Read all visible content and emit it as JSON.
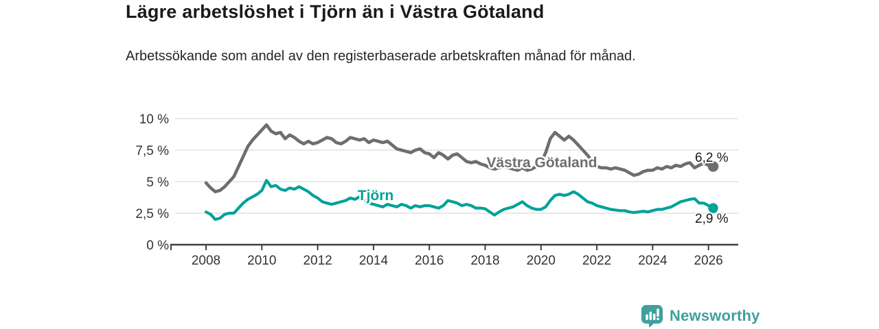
{
  "header": {
    "title": "Lägre arbetslöshet i Tjörn än i Västra Götaland",
    "subtitle": "Arbetssökande som andel av den registerbaserade arbetskraften månad för månad."
  },
  "chart_data": {
    "type": "line",
    "title": "Lägre arbetslöshet i Tjörn än i Västra Götaland",
    "xlabel": "",
    "ylabel": "",
    "x_unit": "year",
    "y_unit": "%",
    "grid": "horizontal",
    "legend": "inline-labels",
    "xlim": [
      2006.7,
      2027.1
    ],
    "ylim": [
      0,
      10.5
    ],
    "x_axis": {
      "tick_values": [
        2008,
        2010,
        2012,
        2014,
        2016,
        2018,
        2020,
        2022,
        2024,
        2026
      ],
      "tick_labels": [
        "2008",
        "2010",
        "2012",
        "2014",
        "2016",
        "2018",
        "2020",
        "2022",
        "2024",
        "2026"
      ]
    },
    "y_axis": {
      "tick_values": [
        0,
        2.5,
        5,
        7.5,
        10
      ],
      "tick_labels": [
        "0 %",
        "2,5 %",
        "5 %",
        "7,5 %",
        "10 %"
      ]
    },
    "x_start": 2008.0,
    "x_step_months": 2,
    "series": [
      {
        "id": "vastra-gotaland",
        "name": "Västra Götaland",
        "color": "#6d6d72",
        "end_value": 6.2,
        "end_label": "6,2 %",
        "values": [
          4.9,
          4.5,
          4.2,
          4.3,
          4.6,
          5.0,
          5.4,
          6.2,
          7.0,
          7.8,
          8.3,
          8.7,
          9.1,
          9.5,
          9.0,
          8.8,
          8.9,
          8.4,
          8.7,
          8.5,
          8.2,
          8.0,
          8.2,
          8.0,
          8.1,
          8.3,
          8.5,
          8.4,
          8.1,
          8.0,
          8.2,
          8.5,
          8.4,
          8.3,
          8.4,
          8.1,
          8.3,
          8.2,
          8.1,
          8.2,
          7.9,
          7.6,
          7.5,
          7.4,
          7.3,
          7.5,
          7.6,
          7.3,
          7.2,
          6.9,
          7.3,
          7.1,
          6.8,
          7.1,
          7.2,
          6.9,
          6.6,
          6.5,
          6.6,
          6.4,
          6.3,
          6.1,
          6.0,
          6.1,
          6.2,
          6.1,
          6.0,
          5.9,
          6.1,
          5.9,
          6.0,
          6.2,
          6.5,
          7.3,
          8.4,
          8.9,
          8.6,
          8.3,
          8.6,
          8.3,
          7.9,
          7.5,
          7.1,
          6.6,
          6.2,
          6.1,
          6.1,
          6.0,
          6.1,
          6.0,
          5.9,
          5.7,
          5.5,
          5.6,
          5.8,
          5.9,
          5.9,
          6.1,
          6.0,
          6.2,
          6.1,
          6.3,
          6.2,
          6.4,
          6.5,
          6.1,
          6.3,
          6.45,
          6.3,
          6.2
        ]
      },
      {
        "id": "tjorn",
        "name": "Tjörn",
        "color": "#00a298",
        "end_value": 2.9,
        "end_label": "2,9 %",
        "values": [
          2.6,
          2.4,
          2.0,
          2.1,
          2.4,
          2.5,
          2.5,
          2.9,
          3.3,
          3.6,
          3.8,
          4.0,
          4.3,
          5.1,
          4.6,
          4.7,
          4.4,
          4.3,
          4.5,
          4.4,
          4.6,
          4.4,
          4.2,
          3.9,
          3.7,
          3.4,
          3.3,
          3.2,
          3.3,
          3.4,
          3.5,
          3.7,
          3.6,
          3.8,
          3.5,
          3.3,
          3.2,
          3.1,
          3.0,
          3.2,
          3.1,
          3.0,
          3.2,
          3.1,
          2.9,
          3.1,
          3.0,
          3.1,
          3.1,
          3.0,
          2.9,
          3.1,
          3.5,
          3.4,
          3.3,
          3.1,
          3.2,
          3.1,
          2.9,
          2.9,
          2.85,
          2.6,
          2.35,
          2.6,
          2.8,
          2.9,
          3.0,
          3.2,
          3.4,
          3.1,
          2.9,
          2.8,
          2.8,
          3.0,
          3.5,
          3.9,
          4.0,
          3.9,
          4.0,
          4.2,
          4.0,
          3.7,
          3.4,
          3.3,
          3.1,
          3.0,
          2.9,
          2.8,
          2.75,
          2.7,
          2.7,
          2.6,
          2.55,
          2.6,
          2.65,
          2.6,
          2.7,
          2.8,
          2.8,
          2.9,
          3.0,
          3.2,
          3.4,
          3.5,
          3.6,
          3.65,
          3.3,
          3.3,
          3.1,
          2.9
        ]
      }
    ]
  },
  "footer": {
    "brand": "Newsworthy",
    "brand_color": "#3fa09d",
    "logo_icon": "bar-chart-speech-bubble-icon"
  }
}
